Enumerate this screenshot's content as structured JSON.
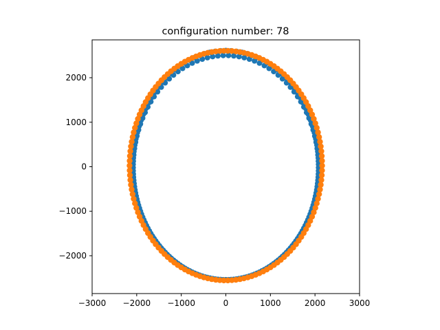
{
  "chart_data": {
    "type": "scatter",
    "title": "configuration number: 78",
    "xlabel": "",
    "ylabel": "",
    "xlim": [
      -3000,
      3000
    ],
    "ylim": [
      -2850,
      2850
    ],
    "x_ticks": [
      -3000,
      -2000,
      -1000,
      0,
      1000,
      2000,
      3000
    ],
    "y_ticks": [
      -2000,
      -1000,
      0,
      1000,
      2000
    ],
    "grid": false,
    "legend": "none",
    "series": [
      {
        "color": "#1f77b4",
        "marker": "circle",
        "shape": "ellipse",
        "center": [
          0,
          -20
        ],
        "radii": [
          2080,
          2520
        ],
        "upper_thickness": 110,
        "point_count": 220
      },
      {
        "color": "#ff7f0e",
        "marker": "circle",
        "shape": "ellipse",
        "center": [
          0,
          25
        ],
        "radii": [
          2160,
          2580
        ],
        "point_count": 150
      }
    ]
  }
}
